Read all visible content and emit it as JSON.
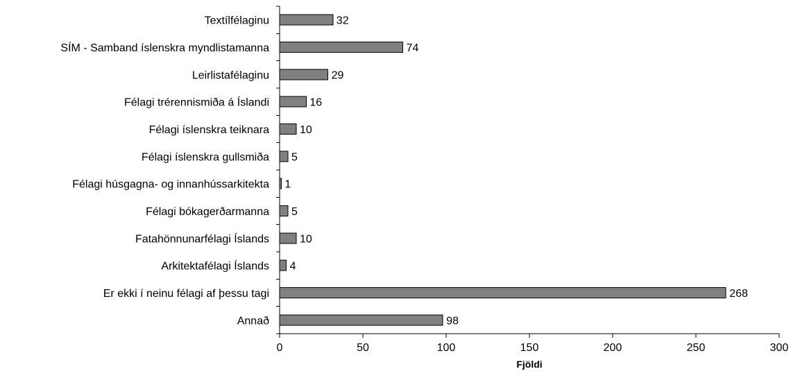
{
  "chart_data": {
    "type": "bar",
    "orientation": "horizontal",
    "categories": [
      "Textílfélaginu",
      "SÍM - Samband íslenskra myndlistamanna",
      "Leirlistafélaginu",
      "Félagi trérennismiða á Íslandi",
      "Félagi íslenskra teiknara",
      "Félagi íslenskra gullsmiða",
      "Félagi húsgagna- og innanhússarkitekta",
      "Félagi bókagerðarmanna",
      "Fatahönnunarfélagi Íslands",
      "Arkitektafélagi Íslands",
      "Er ekki í neinu félagi af þessu tagi",
      "Annað"
    ],
    "values": [
      32,
      74,
      29,
      16,
      10,
      5,
      1,
      5,
      10,
      4,
      268,
      98
    ],
    "xlabel": "Fjöldi",
    "ylabel": "",
    "xlim": [
      0,
      300
    ],
    "x_ticks": [
      0,
      50,
      100,
      150,
      200,
      250,
      300
    ],
    "grid": false,
    "legend": "none",
    "bar_color": "#808080",
    "bar_edge_color": "#000000"
  }
}
